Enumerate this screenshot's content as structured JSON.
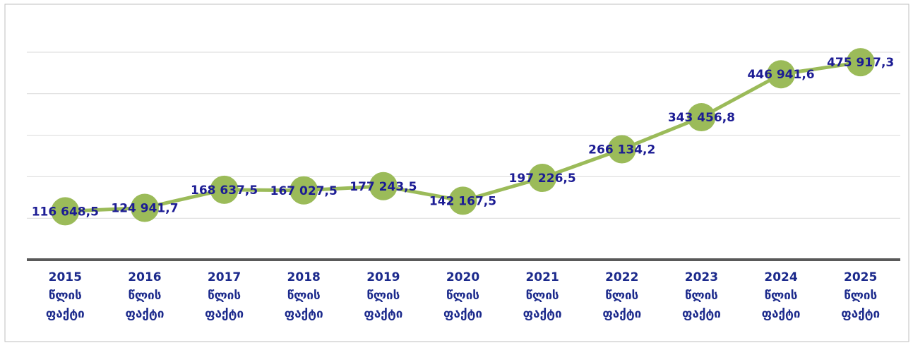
{
  "chart_data": {
    "type": "line",
    "categories": [
      "2015 წლის ფაქტი",
      "2016 წლის ფაქტი",
      "2017 წლის ფაქტი",
      "2018 წლის ფაქტი",
      "2019 წლის ფაქტი",
      "2020 წლის ფაქტი",
      "2021 წლის ფაქტი",
      "2022 წლის ფაქტი",
      "2023 წლის ფაქტი",
      "2024 წლის ფაქტი",
      "2025 წლის ფაქტი"
    ],
    "values": [
      116648.5,
      124941.7,
      168637.5,
      167027.5,
      177243.5,
      142167.5,
      197226.5,
      266134.2,
      343456.8,
      446941.6,
      475917.3
    ],
    "value_labels": [
      "116 648,5",
      "124 941,7",
      "168 637,5",
      "167 027,5",
      "177 243,5",
      "142 167,5",
      "197 226,5",
      "266 134,2",
      "343 456,8",
      "446 941,6",
      "475 917,3"
    ],
    "color": "#9bbb59",
    "ylim": [
      0,
      500000
    ],
    "yticks": [
      0,
      100000,
      200000,
      300000,
      400000,
      500000
    ],
    "grid": true
  }
}
